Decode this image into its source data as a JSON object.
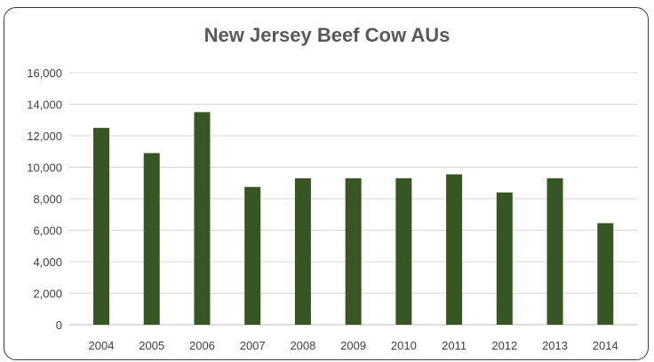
{
  "chart_data": {
    "type": "bar",
    "title": "New Jersey Beef Cow AUs",
    "xlabel": "",
    "ylabel": "",
    "categories": [
      "2004",
      "2005",
      "2006",
      "2007",
      "2008",
      "2009",
      "2010",
      "2011",
      "2012",
      "2013",
      "2014"
    ],
    "values": [
      12500,
      10900,
      13500,
      8750,
      9300,
      9300,
      9300,
      9550,
      8400,
      9300,
      6450
    ],
    "ylim": [
      0,
      16000
    ],
    "yticks": [
      "0",
      "2,000",
      "4,000",
      "6,000",
      "8,000",
      "10,000",
      "12,000",
      "14,000",
      "16,000"
    ],
    "grid": true,
    "legend": "none",
    "bar_color": "#375623"
  }
}
